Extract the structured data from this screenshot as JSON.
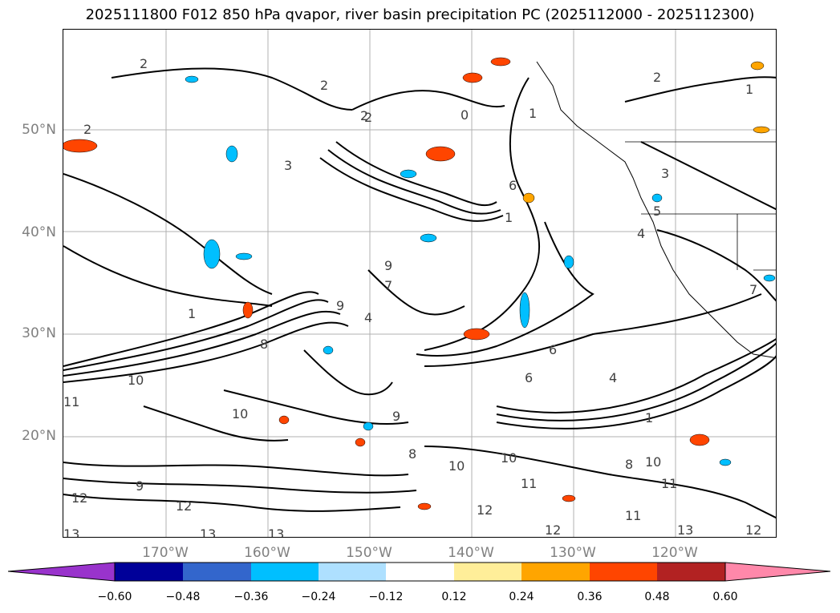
{
  "title": "2025111800 F012 850 hPa qvapor, river basin precipitation PC (2025112000 - 2025112300)",
  "map": {
    "lat_labels": [
      "50°N",
      "40°N",
      "30°N",
      "20°N"
    ],
    "lon_labels": [
      "170°W",
      "160°W",
      "150°W",
      "140°W",
      "130°W",
      "120°W"
    ],
    "contour_labels": [
      "2",
      "2",
      "2",
      "2",
      "1",
      "1",
      "0",
      "1",
      "1",
      "2",
      "2",
      "1",
      "3",
      "3",
      "4",
      "4",
      "4",
      "5",
      "6",
      "6",
      "6",
      "7",
      "7",
      "8",
      "8",
      "8",
      "9",
      "9",
      "9",
      "9",
      "10",
      "10",
      "10",
      "10",
      "10",
      "11",
      "11",
      "11",
      "11",
      "12",
      "12",
      "12",
      "12",
      "12",
      "13",
      "13",
      "13",
      "13"
    ]
  },
  "colorbar": {
    "tick_labels": [
      "−0.60",
      "−0.48",
      "−0.36",
      "−0.24",
      "−0.12",
      "0.12",
      "0.24",
      "0.36",
      "0.48",
      "0.60"
    ],
    "colors": [
      "#9933cc",
      "#000099",
      "#3366cc",
      "#00bfff",
      "#aee0ff",
      "#ffffff",
      "#ffee99",
      "#ffa500",
      "#ff4500",
      "#b22222",
      "#ff88aa"
    ]
  }
}
